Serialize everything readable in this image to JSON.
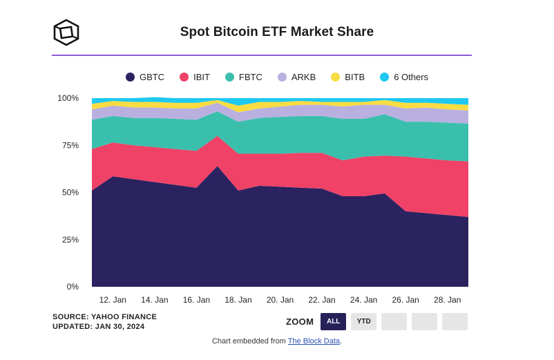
{
  "title": "Spot Bitcoin ETF Market Share",
  "legend": [
    {
      "label": "GBTC",
      "color": "#2b2260"
    },
    {
      "label": "IBIT",
      "color": "#ef4266"
    },
    {
      "label": "FBTC",
      "color": "#3bbfad"
    },
    {
      "label": "ARKB",
      "color": "#b9b0e0"
    },
    {
      "label": "BITB",
      "color": "#f7dc43"
    },
    {
      "label": "6 Others",
      "color": "#1ec8f0"
    }
  ],
  "footer": {
    "source": "SOURCE: YAHOO FINANCE",
    "updated": "UPDATED: JAN 30, 2024",
    "zoom_label": "ZOOM",
    "zoom_all": "ALL",
    "zoom_ytd": "YTD",
    "embed_prefix": "Chart embedded from",
    "embed_link": "The Block Data",
    "embed_suffix": "."
  },
  "chart_data": {
    "type": "area",
    "stacked": true,
    "x": [
      "11 Jan",
      "12 Jan",
      "13 Jan",
      "14 Jan",
      "15 Jan",
      "16 Jan",
      "17 Jan",
      "18 Jan",
      "19 Jan",
      "20 Jan",
      "21 Jan",
      "22 Jan",
      "23 Jan",
      "24 Jan",
      "25 Jan",
      "26 Jan",
      "27 Jan",
      "28 Jan",
      "29 Jan"
    ],
    "x_tick_labels": [
      "12. Jan",
      "14. Jan",
      "16. Jan",
      "18. Jan",
      "20. Jan",
      "22. Jan",
      "24. Jan",
      "26. Jan",
      "28. Jan"
    ],
    "y_tick_labels": [
      "0%",
      "25%",
      "50%",
      "75%",
      "100%"
    ],
    "ylim": [
      0,
      100
    ],
    "series": [
      {
        "name": "GBTC",
        "values": [
          51,
          58.5,
          57,
          55.5,
          54,
          52.5,
          64,
          51,
          53.5,
          53,
          52.5,
          52,
          48,
          48,
          49.5,
          40,
          39,
          38,
          37
        ]
      },
      {
        "name": "IBIT",
        "values": [
          22,
          18,
          18,
          18.5,
          19,
          19.5,
          16,
          19.5,
          17,
          17.5,
          18.5,
          19,
          19,
          21,
          20,
          29,
          29,
          29,
          29.5
        ]
      },
      {
        "name": "FBTC",
        "values": [
          15.5,
          14,
          14.5,
          15.5,
          16,
          16.5,
          13,
          17,
          19,
          19.5,
          19.5,
          19.5,
          22,
          20,
          22,
          18.5,
          19.5,
          20,
          20
        ]
      },
      {
        "name": "ARKB",
        "values": [
          5.5,
          5.5,
          5.5,
          5.5,
          5.5,
          6,
          4.5,
          5,
          5,
          5.5,
          6,
          6,
          6.5,
          7.5,
          5,
          7,
          7.5,
          7,
          7
        ]
      },
      {
        "name": "BITB",
        "values": [
          3,
          2.5,
          3,
          3,
          3,
          3,
          1.5,
          3.5,
          3.5,
          2.5,
          2,
          1.5,
          2.5,
          1.5,
          2.5,
          3,
          2.5,
          3,
          3
        ]
      },
      {
        "name": "6 Others",
        "values": [
          3,
          1.5,
          2,
          2.5,
          2.5,
          2.5,
          1,
          4,
          2,
          2,
          1.5,
          2,
          2,
          2,
          1,
          2.5,
          2.5,
          3,
          3.5
        ]
      }
    ]
  }
}
